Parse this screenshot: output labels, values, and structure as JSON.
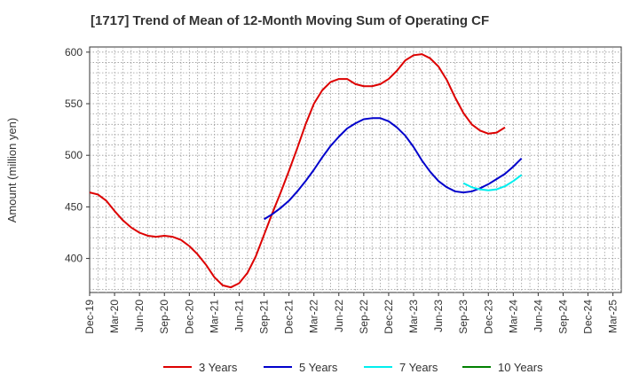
{
  "chart_data": {
    "type": "line",
    "title": "[1717]  Trend of Mean of 12-Month Moving Sum of Operating CF",
    "xlabel": "",
    "ylabel": "Amount (million yen)",
    "ylim": [
      367,
      605
    ],
    "yticks": [
      400,
      450,
      500,
      550,
      600
    ],
    "x_tick_labels": [
      "Dec-19",
      "Mar-20",
      "Jun-20",
      "Sep-20",
      "Dec-20",
      "Mar-21",
      "Jun-21",
      "Sep-21",
      "Dec-21",
      "Mar-22",
      "Jun-22",
      "Sep-22",
      "Dec-22",
      "Mar-23",
      "Jun-23",
      "Sep-23",
      "Dec-23",
      "Mar-24",
      "Jun-24",
      "Sep-24",
      "Dec-24",
      "Mar-25"
    ],
    "x_month_start": "Dec-19",
    "x_month_count": 64,
    "grid": true,
    "legend_position": "bottom",
    "series": [
      {
        "name": "3 Years",
        "color": "#dd0000",
        "start_month_index": 0,
        "values": [
          464,
          462,
          456,
          446,
          437,
          430,
          425,
          422,
          421,
          422,
          421,
          418,
          412,
          404,
          394,
          382,
          374,
          372,
          376,
          386,
          402,
          423,
          444,
          464,
          485,
          507,
          530,
          550,
          563,
          571,
          574,
          574,
          569,
          567,
          567,
          569,
          574,
          582,
          592,
          597,
          598,
          594,
          586,
          573,
          556,
          541,
          530,
          524,
          521,
          522,
          527
        ]
      },
      {
        "name": "5 Years",
        "color": "#0000cc",
        "start_month_index": 21,
        "values": [
          438,
          443,
          449,
          456,
          465,
          475,
          486,
          498,
          509,
          518,
          526,
          531,
          535,
          536,
          536,
          533,
          527,
          519,
          508,
          495,
          484,
          475,
          469,
          465,
          464,
          465,
          468,
          472,
          477,
          482,
          489,
          497
        ]
      },
      {
        "name": "7 Years",
        "color": "#00eeee",
        "start_month_index": 45,
        "values": [
          473,
          469,
          467,
          466,
          467,
          470,
          475,
          481
        ]
      },
      {
        "name": "10 Years",
        "color": "#008000",
        "start_month_index": 0,
        "values": []
      }
    ]
  }
}
